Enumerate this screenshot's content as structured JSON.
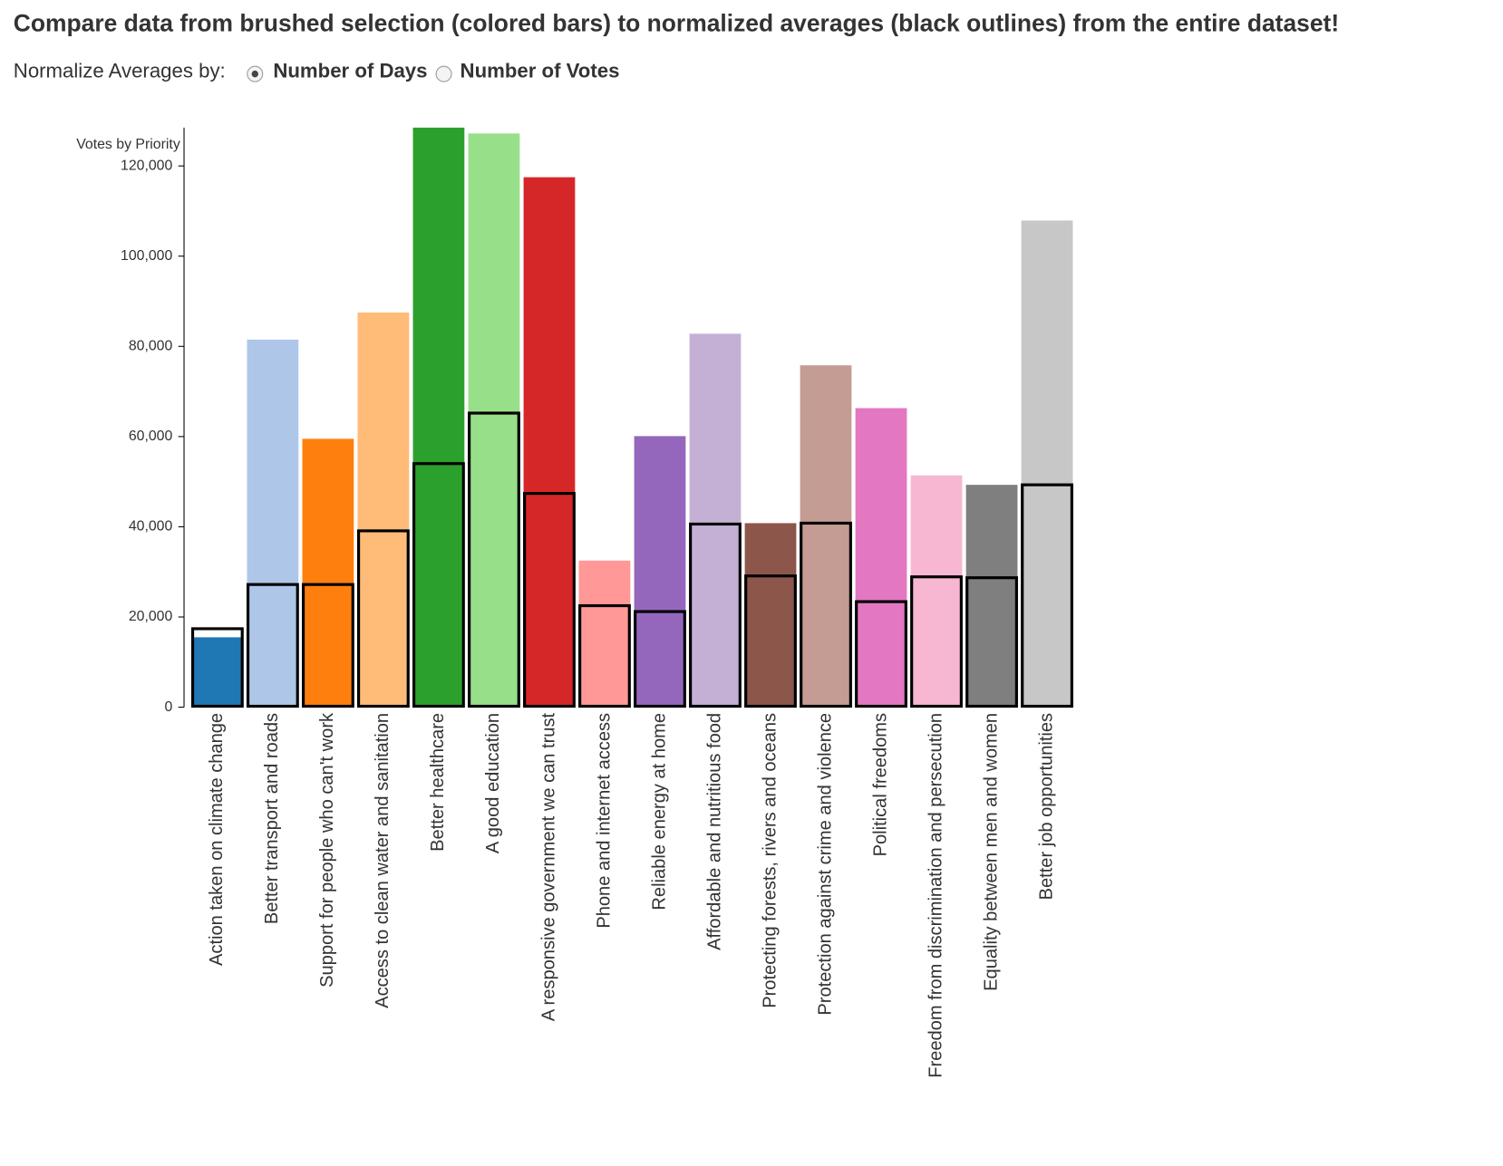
{
  "controls": {
    "label": "Normalize Averages by:",
    "options": [
      "Number of Days",
      "Number of Votes"
    ],
    "selected": 0
  },
  "chart_data": {
    "type": "bar",
    "title": "Compare data from brushed selection (colored bars) to normalized averages (black outlines) from the entire dataset!",
    "y_label": "Votes by Priority",
    "categories": [
      "Action taken on climate change",
      "Better transport and roads",
      "Support for people who can't work",
      "Access to clean water and sanitation",
      "Better healthcare",
      "A good education",
      "A responsive government we can trust",
      "Phone and internet access",
      "Reliable energy at home",
      "Affordable and nutritious food",
      "Protecting forests, rivers and oceans",
      "Protection against crime and violence",
      "Political freedoms",
      "Freedom from discrimination and persecution",
      "Equality between men and women",
      "Better job opportunities"
    ],
    "series": [
      {
        "colors": [
          "#1f77b4",
          "#aec7e8",
          "#ff7f0e",
          "#ffbb78",
          "#2ca02c",
          "#98df8a",
          "#d62728",
          "#ff9896",
          "#9467bd",
          "#c5b0d5",
          "#8c564b",
          "#c49c94",
          "#e377c2",
          "#f7b6d2",
          "#7f7f7f",
          "#c7c7c7"
        ],
        "values": [
          15500,
          81500,
          59500,
          87500,
          128500,
          127200,
          117500,
          32500,
          60100,
          82800,
          40800,
          75800,
          66300,
          51400,
          49300,
          107900
        ]
      },
      {
        "color": "#000000",
        "values": [
          17400,
          27200,
          27200,
          39100,
          54000,
          65200,
          47400,
          22500,
          21200,
          40600,
          29100,
          40800,
          23400,
          28900,
          28700,
          49300
        ]
      }
    ],
    "ylim": [
      0,
      128500
    ],
    "yticks": [
      0,
      {
        "value": 20000,
        "label": "20,000"
      },
      {
        "value": 40000,
        "label": "40,000"
      },
      {
        "value": 60000,
        "label": "60,000"
      },
      {
        "value": 80000,
        "label": "80,000"
      },
      {
        "value": 100000,
        "label": "100,000"
      },
      {
        "value": 120000,
        "label": "120,000"
      }
    ]
  }
}
